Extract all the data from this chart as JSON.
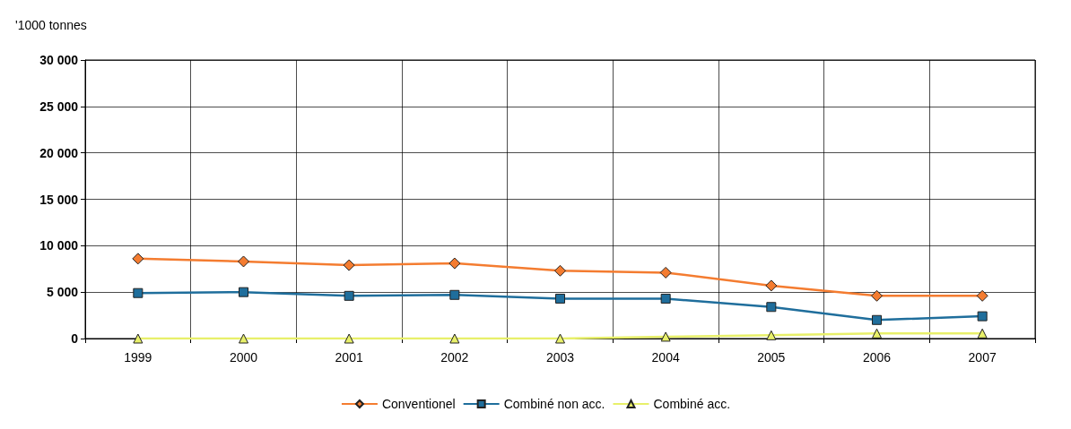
{
  "chart_data": {
    "type": "line",
    "ylabel": "'1000 tonnes",
    "categories": [
      "1999",
      "2000",
      "2001",
      "2002",
      "2003",
      "2004",
      "2005",
      "2006",
      "2007"
    ],
    "series": [
      {
        "name": "Conventionel",
        "color": "#f47c30",
        "marker": "diamond",
        "values": [
          8600,
          8300,
          7900,
          8100,
          7300,
          7100,
          5700,
          4600,
          4600
        ]
      },
      {
        "name": "Combiné non acc.",
        "color": "#1f6e9c",
        "marker": "square",
        "values": [
          4900,
          5000,
          4600,
          4700,
          4300,
          4300,
          3400,
          2000,
          2400
        ]
      },
      {
        "name": "Combiné acc.",
        "color": "#e8f06a",
        "marker": "triangle",
        "values": [
          0,
          0,
          0,
          0,
          0,
          200,
          350,
          550,
          550
        ]
      }
    ],
    "ylim": [
      0,
      30000
    ],
    "yticks": [
      {
        "value": 0,
        "label": "0"
      },
      {
        "value": 5000,
        "label": "5 000"
      },
      {
        "value": 10000,
        "label": "10 000"
      },
      {
        "value": 15000,
        "label": "15 000"
      },
      {
        "value": 20000,
        "label": "20 000"
      },
      {
        "value": 25000,
        "label": "25 000"
      },
      {
        "value": 30000,
        "label": "30 000"
      }
    ],
    "grid": true,
    "legend": "bottom",
    "line_style": "solid"
  }
}
